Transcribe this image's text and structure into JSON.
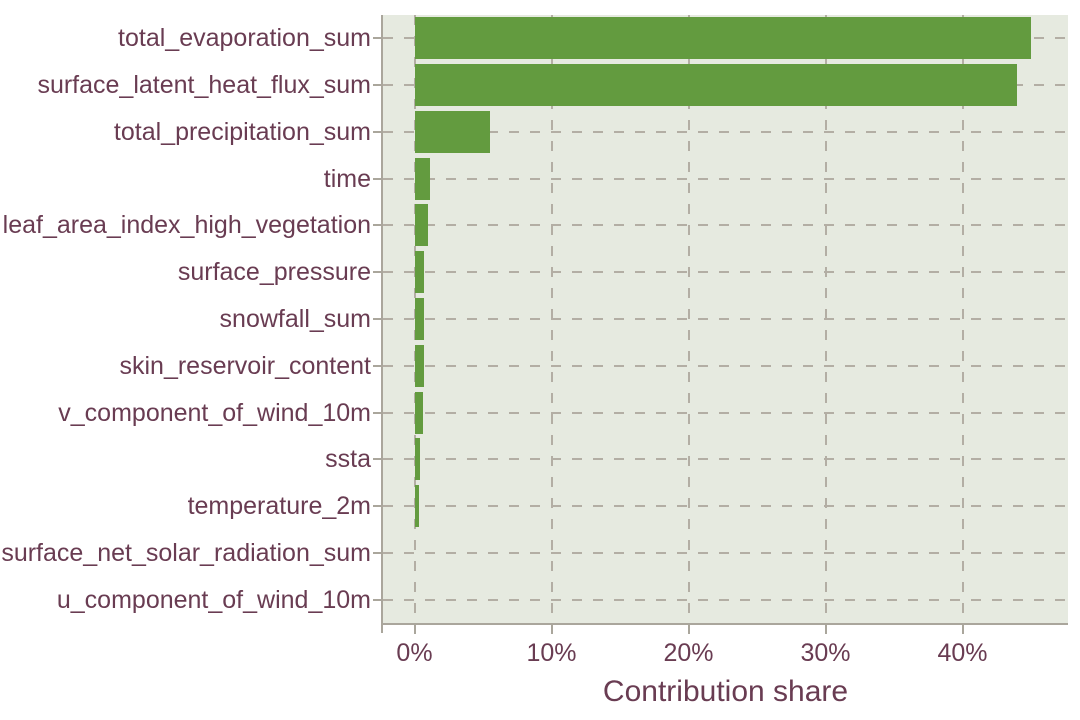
{
  "chart_data": {
    "type": "bar",
    "orientation": "horizontal",
    "title": "",
    "xlabel": "Contribution share",
    "ylabel": "",
    "categories": [
      "total_evaporation_sum",
      "surface_latent_heat_flux_sum",
      "total_precipitation_sum",
      "time",
      "leaf_area_index_high_vegetation",
      "surface_pressure",
      "snowfall_sum",
      "skin_reservoir_content",
      "v_component_of_wind_10m",
      "ssta",
      "temperature_2m",
      "surface_net_solar_radiation_sum",
      "u_component_of_wind_10m"
    ],
    "values": [
      45.0,
      44.0,
      5.5,
      1.1,
      0.95,
      0.72,
      0.7,
      0.68,
      0.65,
      0.4,
      0.3,
      0.02,
      0.01
    ],
    "value_unit": "%",
    "xticks": [
      0,
      10,
      20,
      30,
      40
    ],
    "xtick_labels": [
      "0%",
      "10%",
      "20%",
      "30%",
      "40%"
    ],
    "xlim": [
      -2.3,
      47.7
    ],
    "grid": "dashed-both-axes",
    "legend": "none",
    "colors": {
      "bar": "#639b3f",
      "panel_background": "#e6eae0",
      "figure_background": "#ffffff",
      "gridline": "#b3aea4",
      "axis_line": "#aaa69c",
      "text": "#693c52"
    }
  }
}
